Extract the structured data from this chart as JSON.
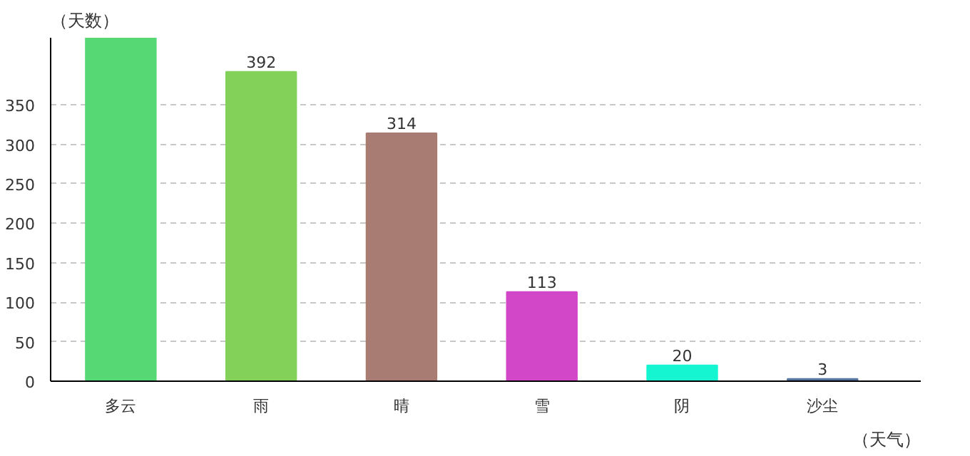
{
  "chart_data": {
    "type": "bar",
    "categories": [
      "多云",
      "雨",
      "晴",
      "雪",
      "阴",
      "沙尘"
    ],
    "values": [
      435,
      392,
      314,
      113,
      20,
      3
    ],
    "value_labels": [
      null,
      "392",
      "314",
      "113",
      "20",
      "3"
    ],
    "colors": [
      "#56d874",
      "#84d15a",
      "#a87c72",
      "#d246c8",
      "#15f5d2",
      "#5575a0"
    ],
    "ylabel": "（天数）",
    "xlabel": "（天气）",
    "ylim": [
      0,
      435
    ],
    "yticks": [
      0,
      50,
      100,
      150,
      200,
      250,
      300,
      350
    ],
    "grid": "y"
  }
}
